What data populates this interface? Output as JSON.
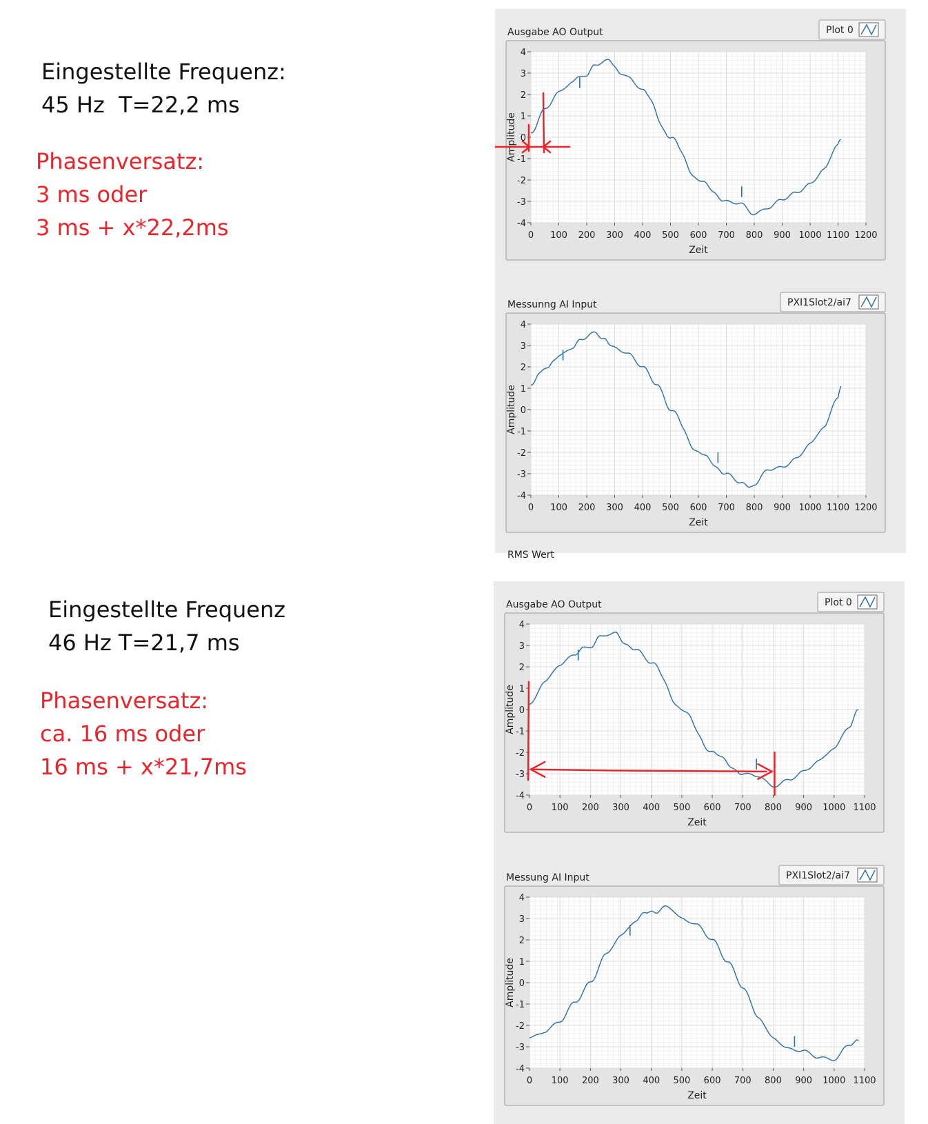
{
  "notes": [
    {
      "heading": "Eingestellte Frequenz:",
      "period": "45 Hz  T=22,2 ms"
    },
    {
      "heading": "Eingestellte Frequenz",
      "period": "46 Hz T=21,7 ms"
    }
  ],
  "phase_notes": [
    {
      "title": "Phasenversatz:",
      "line1": "3 ms oder",
      "line2": "3 ms + x*22,2ms"
    },
    {
      "title": "Phasenversatz:",
      "line1": "ca. 16 ms oder",
      "line2": "16 ms + x*21,7ms"
    }
  ],
  "colors": {
    "trace": "#2a6fa8",
    "annotation": "#e8252b",
    "panel": "#eaeaea",
    "plot_area": "#ffffff",
    "grid": "#dcdcdc",
    "text": "#111111"
  },
  "truncated_label": "RMS Wert",
  "chart_data": [
    {
      "type": "line",
      "title": "Ausgabe AO Output",
      "legend": "Plot 0",
      "xlabel": "Zeit",
      "ylabel": "Amplitude",
      "xlim": [
        0,
        1200
      ],
      "ylim": [
        -4,
        4
      ],
      "xticks": [
        0,
        100,
        200,
        300,
        400,
        500,
        600,
        700,
        800,
        900,
        1000,
        1100,
        1200
      ],
      "yticks": [
        4,
        3,
        2,
        1,
        0,
        -1,
        -2,
        -3,
        -4
      ],
      "grid": true,
      "series": [
        {
          "name": "Plot 0",
          "x": [
            0,
            50,
            100,
            150,
            180,
            200,
            230,
            280,
            320,
            350,
            400,
            500,
            600,
            700,
            750,
            800,
            850,
            900,
            950,
            1000,
            1050,
            1100,
            1110
          ],
          "y": [
            0.2,
            1.3,
            2.1,
            2.6,
            2.9,
            2.9,
            3.4,
            3.6,
            3.0,
            2.8,
            2.2,
            0.0,
            -2.0,
            -3.0,
            -3.1,
            -3.6,
            -3.3,
            -2.9,
            -2.6,
            -2.2,
            -1.5,
            -0.3,
            -0.1
          ]
        }
      ],
      "glitches": [
        {
          "x": 175,
          "y": 2.3
        },
        {
          "x": 755,
          "y": -2.8
        }
      ]
    },
    {
      "type": "line",
      "title": "Messunng AI Input",
      "legend": "PXI1Slot2/ai7",
      "xlabel": "Zeit",
      "ylabel": "Amplitude",
      "xlim": [
        0,
        1200
      ],
      "ylim": [
        -4,
        4
      ],
      "xticks": [
        0,
        100,
        200,
        300,
        400,
        500,
        600,
        700,
        800,
        900,
        1000,
        1100,
        1200
      ],
      "yticks": [
        4,
        3,
        2,
        1,
        0,
        -1,
        -2,
        -3,
        -4
      ],
      "grid": true,
      "series": [
        {
          "name": "PXI1Slot2/ai7",
          "x": [
            0,
            30,
            60,
            100,
            150,
            180,
            230,
            260,
            300,
            350,
            400,
            450,
            500,
            600,
            700,
            750,
            780,
            800,
            850,
            900,
            950,
            1000,
            1050,
            1100,
            1110
          ],
          "y": [
            1.1,
            1.7,
            2.0,
            2.5,
            2.9,
            3.3,
            3.6,
            3.3,
            2.9,
            2.6,
            2.0,
            1.2,
            0.0,
            -2.0,
            -3.0,
            -3.4,
            -3.6,
            -3.5,
            -2.8,
            -2.7,
            -2.3,
            -1.6,
            -0.8,
            0.6,
            1.1
          ]
        }
      ],
      "glitches": [
        {
          "x": 115,
          "y": 2.3
        },
        {
          "x": 670,
          "y": -2.5
        }
      ]
    },
    {
      "type": "line",
      "title": "Ausgabe AO Output",
      "legend": "Plot 0",
      "xlabel": "Zeit",
      "ylabel": "Amplitude",
      "xlim": [
        0,
        1100
      ],
      "ylim": [
        -4,
        4
      ],
      "xticks": [
        0,
        100,
        200,
        300,
        400,
        500,
        600,
        700,
        800,
        900,
        1000,
        1100
      ],
      "yticks": [
        4,
        3,
        2,
        1,
        0,
        -1,
        -2,
        -3,
        -4
      ],
      "grid": true,
      "series": [
        {
          "name": "Plot 0",
          "x": [
            0,
            50,
            100,
            150,
            180,
            200,
            230,
            280,
            320,
            350,
            400,
            500,
            600,
            700,
            750,
            800,
            850,
            900,
            950,
            1000,
            1050,
            1080
          ],
          "y": [
            0.2,
            1.3,
            2.1,
            2.6,
            2.9,
            2.9,
            3.4,
            3.6,
            3.0,
            2.8,
            2.2,
            0.0,
            -2.0,
            -3.0,
            -3.1,
            -3.6,
            -3.3,
            -2.9,
            -2.4,
            -1.8,
            -0.8,
            0.0
          ]
        }
      ],
      "glitches": [
        {
          "x": 160,
          "y": 2.3
        },
        {
          "x": 745,
          "y": -2.8
        }
      ],
      "annotation_span": [
        0,
        800
      ]
    },
    {
      "type": "line",
      "title": "Messung AI Input",
      "legend": "PXI1Slot2/ai7",
      "xlabel": "Zeit",
      "ylabel": "Amplitude",
      "xlim": [
        0,
        1100
      ],
      "ylim": [
        -4,
        4
      ],
      "xticks": [
        0,
        100,
        200,
        300,
        400,
        500,
        600,
        700,
        800,
        900,
        1000,
        1100
      ],
      "yticks": [
        4,
        3,
        2,
        1,
        0,
        -1,
        -2,
        -3,
        -4
      ],
      "grid": true,
      "series": [
        {
          "name": "PXI1Slot2/ai7",
          "x": [
            0,
            50,
            100,
            150,
            200,
            250,
            300,
            350,
            380,
            420,
            450,
            500,
            550,
            600,
            650,
            700,
            750,
            800,
            850,
            900,
            950,
            1000,
            1050,
            1080
          ],
          "y": [
            -2.6,
            -2.3,
            -1.8,
            -0.9,
            0.0,
            1.3,
            2.2,
            2.9,
            3.3,
            3.3,
            3.6,
            3.0,
            2.7,
            2.0,
            1.0,
            -0.2,
            -1.6,
            -2.6,
            -3.1,
            -3.2,
            -3.5,
            -3.6,
            -2.9,
            -2.7
          ]
        }
      ],
      "glitches": [
        {
          "x": 330,
          "y": 2.2
        },
        {
          "x": 870,
          "y": -3.0
        }
      ]
    }
  ]
}
